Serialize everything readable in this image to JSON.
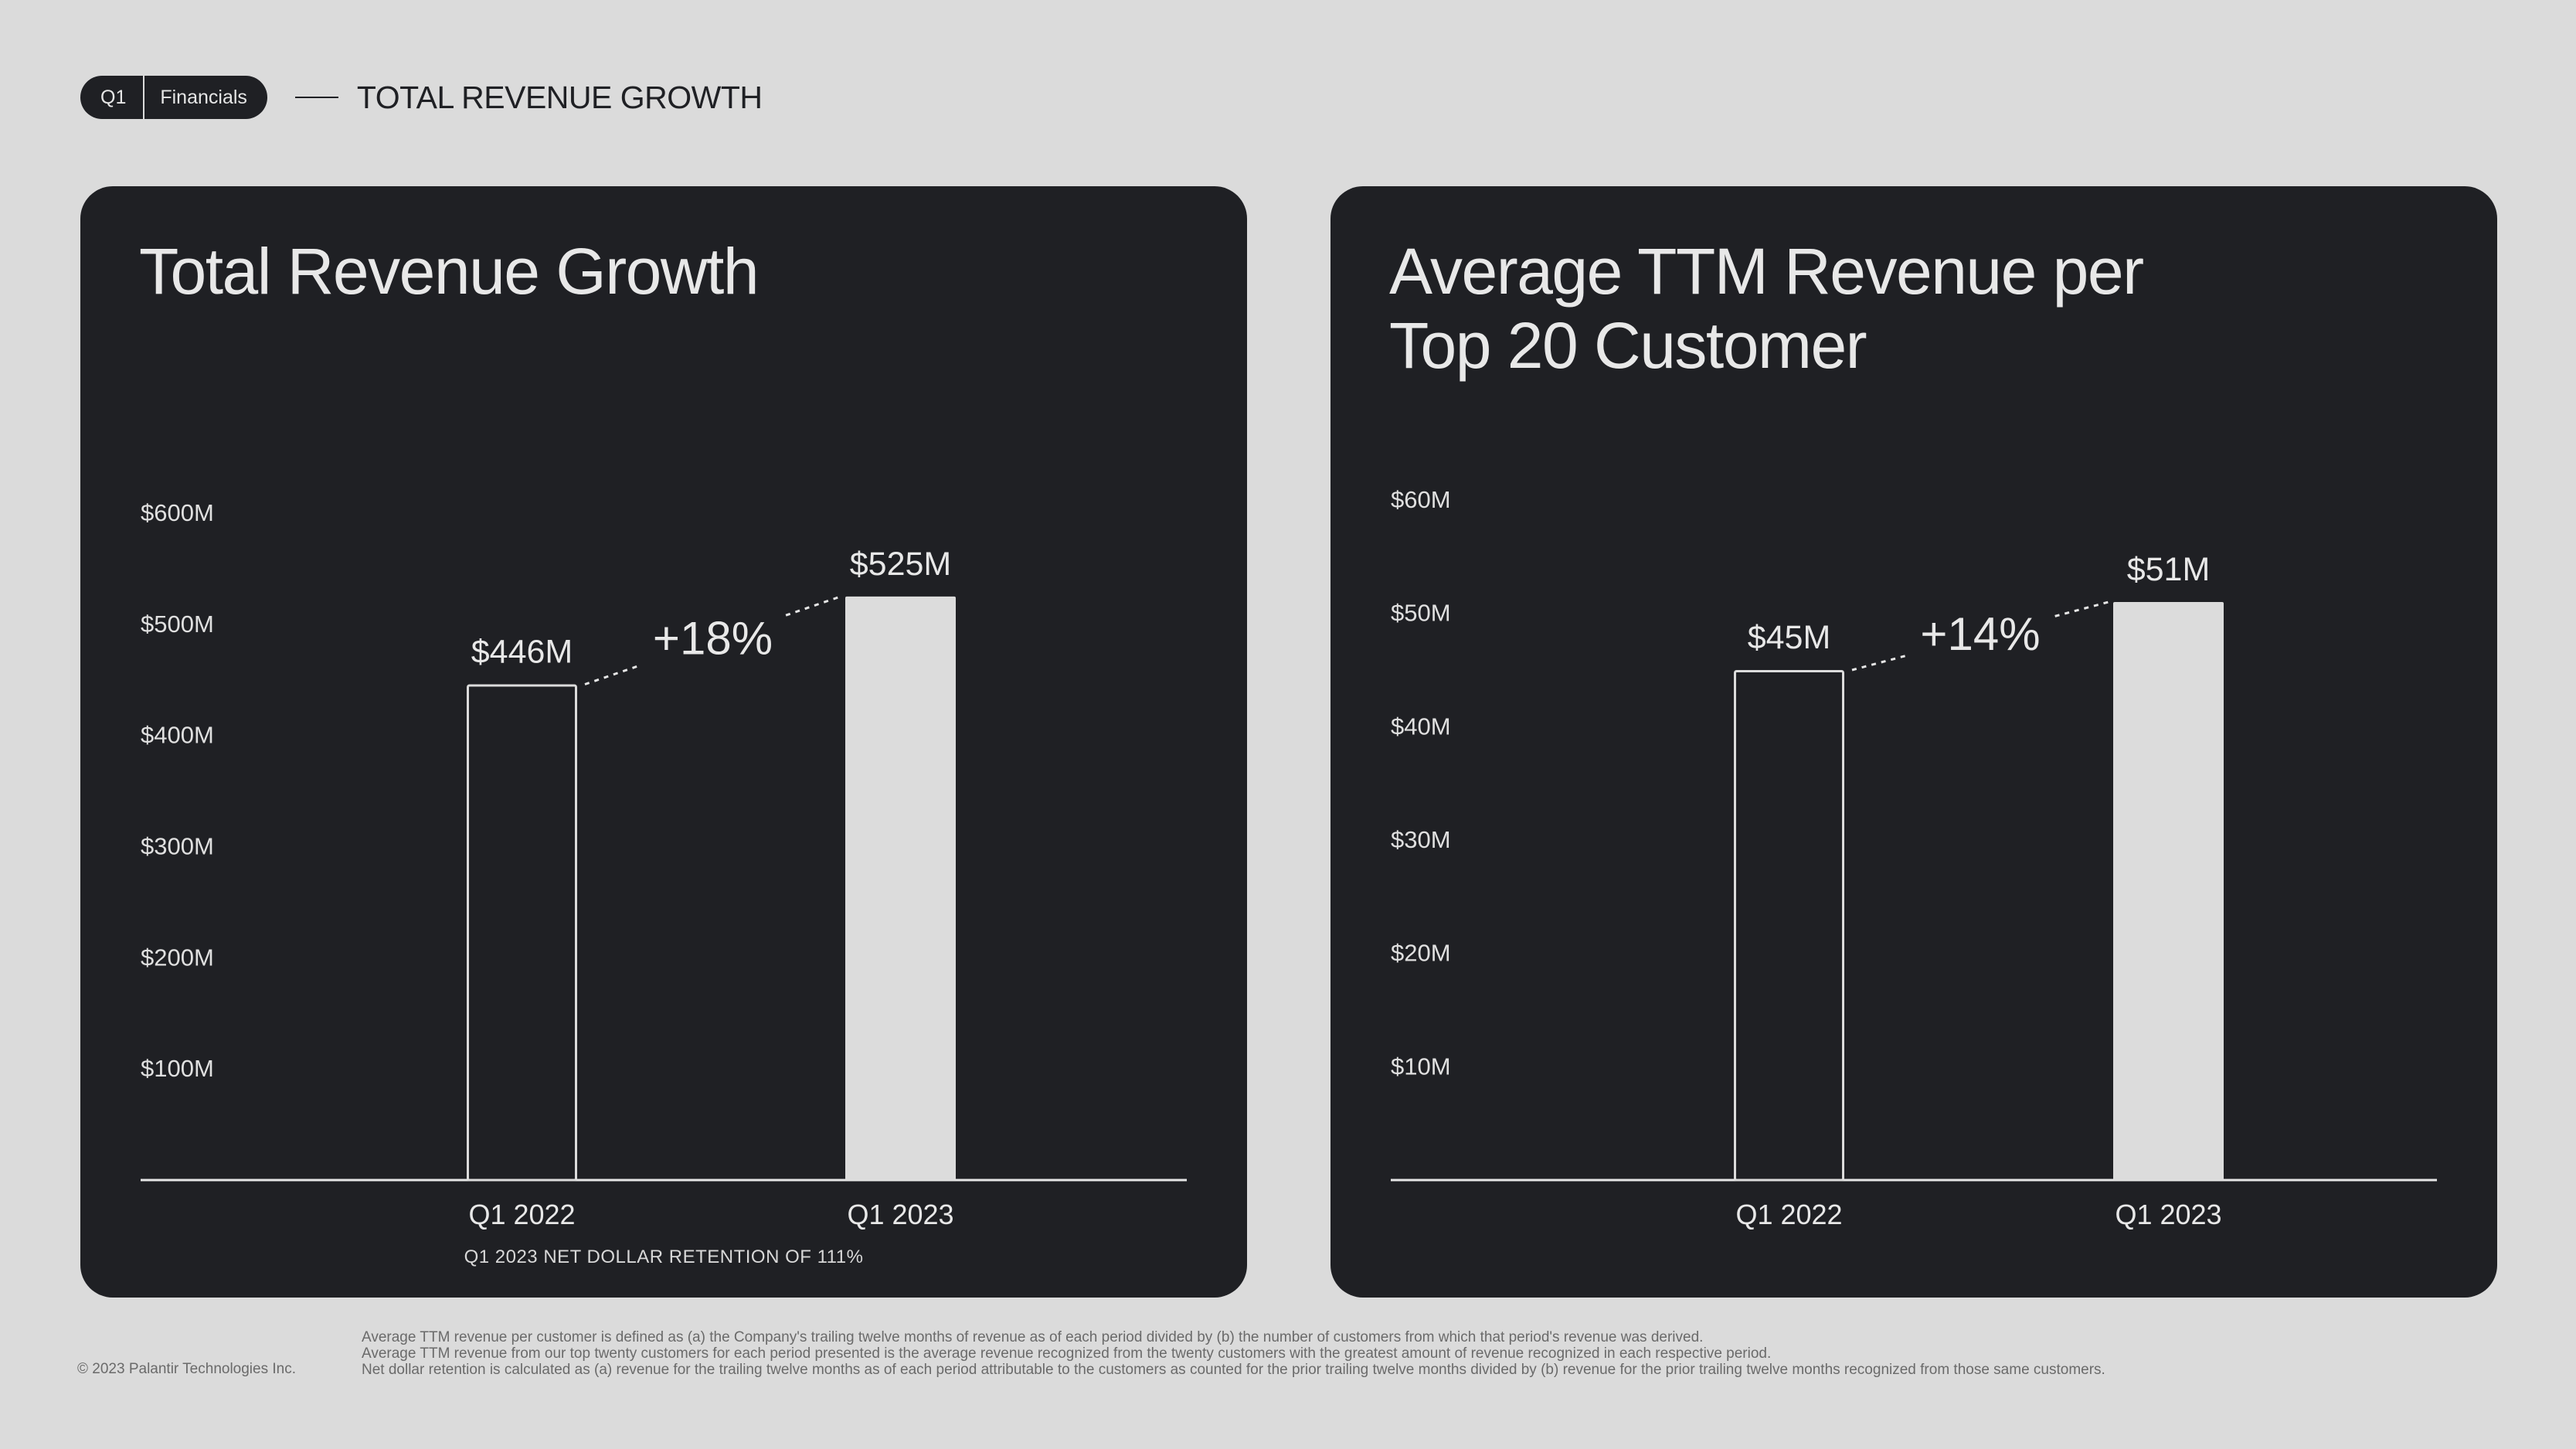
{
  "header": {
    "pill_q": "Q1",
    "pill_section": "Financials",
    "title": "TOTAL REVENUE GROWTH"
  },
  "colors": {
    "background": "#dbdbdb",
    "card": "#1f2024",
    "bar_light": "#dcdcdc",
    "text_light": "#e8e8e8"
  },
  "left_card": {
    "title": "Total Revenue Growth",
    "caption": "Q1 2023 NET DOLLAR RETENTION OF 111%",
    "growth_label": "+18%"
  },
  "right_card": {
    "title_line1": "Average TTM Revenue per",
    "title_line2": "Top 20 Customer",
    "growth_label": "+14%"
  },
  "chart_data": [
    {
      "type": "bar",
      "title": "Total Revenue Growth",
      "categories": [
        "Q1 2022",
        "Q1 2023"
      ],
      "values": [
        446,
        525
      ],
      "value_labels": [
        "$446M",
        "$525M"
      ],
      "bar_styles": [
        "outline",
        "filled"
      ],
      "y_ticks": [
        100,
        200,
        300,
        400,
        500,
        600
      ],
      "y_tick_labels": [
        "$100M",
        "$200M",
        "$300M",
        "$400M",
        "$500M",
        "$600M"
      ],
      "ylim": [
        0,
        600
      ],
      "annotation": "+18%",
      "grid": false
    },
    {
      "type": "bar",
      "title": "Average TTM Revenue per Top 20 Customer",
      "categories": [
        "Q1 2022",
        "Q1 2023"
      ],
      "values": [
        45,
        51
      ],
      "value_labels": [
        "$45M",
        "$51M"
      ],
      "bar_styles": [
        "outline",
        "filled"
      ],
      "y_ticks": [
        10,
        20,
        30,
        40,
        50,
        60
      ],
      "y_tick_labels": [
        "$10M",
        "$20M",
        "$30M",
        "$40M",
        "$50M",
        "$60M"
      ],
      "ylim": [
        0,
        60
      ],
      "annotation": "+14%",
      "grid": false
    }
  ],
  "footer": {
    "copyright": "© 2023 Palantir Technologies Inc.",
    "notes": [
      "Average TTM revenue per customer is defined as (a) the Company's trailing twelve months of revenue as of each period divided by (b) the number of customers from which that period's revenue was derived.",
      "Average TTM revenue from our top twenty customers for each period presented is the average revenue recognized from the twenty customers with the greatest amount of revenue recognized in each respective period.",
      "Net dollar retention is calculated as (a) revenue for the trailing twelve months as of each period attributable to the customers as counted for the prior trailing twelve months divided by (b) revenue for the prior trailing twelve months recognized from those same customers."
    ]
  }
}
